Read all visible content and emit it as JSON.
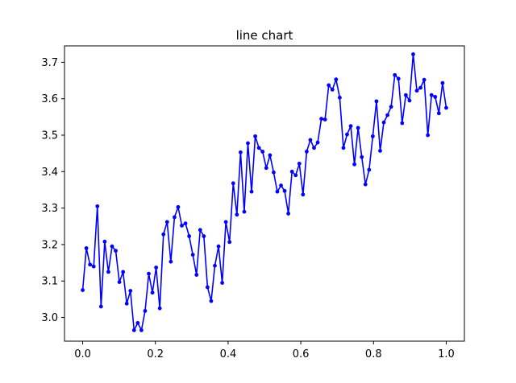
{
  "chart_data": {
    "type": "line",
    "title": "line chart",
    "xlabel": "",
    "ylabel": "",
    "xlim": [
      -0.05,
      1.05
    ],
    "ylim": [
      2.935,
      3.745
    ],
    "grid": false,
    "xticks": [
      "0.0",
      "0.2",
      "0.4",
      "0.6",
      "0.8",
      "1.0"
    ],
    "yticks": [
      "3.0",
      "3.1",
      "3.2",
      "3.3",
      "3.4",
      "3.5",
      "3.6",
      "3.7"
    ],
    "color": "#0000ff",
    "marker": "circle",
    "series": [
      {
        "x": [
          0.0,
          0.0101,
          0.0202,
          0.0303,
          0.0404,
          0.0505,
          0.0606,
          0.0707,
          0.0808,
          0.0909,
          0.101,
          0.1111,
          0.1212,
          0.1313,
          0.1414,
          0.1515,
          0.1616,
          0.1717,
          0.1818,
          0.1919,
          0.202,
          0.2121,
          0.2222,
          0.2323,
          0.2424,
          0.2525,
          0.2626,
          0.2727,
          0.2828,
          0.2929,
          0.303,
          0.3131,
          0.3232,
          0.3333,
          0.3434,
          0.3535,
          0.3636,
          0.3737,
          0.3838,
          0.3939,
          0.404,
          0.4141,
          0.4242,
          0.4343,
          0.4444,
          0.4545,
          0.4646,
          0.4747,
          0.4848,
          0.4949,
          0.5051,
          0.5152,
          0.5253,
          0.5354,
          0.5455,
          0.5556,
          0.5657,
          0.5758,
          0.5859,
          0.596,
          0.6061,
          0.6162,
          0.6263,
          0.6364,
          0.6465,
          0.6566,
          0.6667,
          0.6768,
          0.6869,
          0.697,
          0.7071,
          0.7172,
          0.7273,
          0.7374,
          0.7475,
          0.7576,
          0.7677,
          0.7778,
          0.7879,
          0.798,
          0.8081,
          0.8182,
          0.8283,
          0.8384,
          0.8485,
          0.8586,
          0.8687,
          0.8788,
          0.8889,
          0.899,
          0.9091,
          0.9192,
          0.9293,
          0.9394,
          0.9495,
          0.9596,
          0.9697,
          0.9798,
          0.9899,
          1.0
        ],
        "y": [
          3.075,
          3.19,
          3.145,
          3.14,
          3.305,
          3.03,
          3.208,
          3.125,
          3.195,
          3.183,
          3.097,
          3.125,
          3.038,
          3.073,
          2.965,
          2.985,
          2.965,
          3.018,
          3.12,
          3.068,
          3.137,
          3.025,
          3.228,
          3.262,
          3.153,
          3.275,
          3.303,
          3.252,
          3.258,
          3.223,
          3.172,
          3.117,
          3.24,
          3.223,
          3.083,
          3.045,
          3.142,
          3.195,
          3.095,
          3.262,
          3.207,
          3.368,
          3.282,
          3.453,
          3.29,
          3.478,
          3.345,
          3.497,
          3.465,
          3.455,
          3.41,
          3.445,
          3.398,
          3.345,
          3.362,
          3.347,
          3.285,
          3.4,
          3.39,
          3.422,
          3.337,
          3.455,
          3.487,
          3.465,
          3.48,
          3.545,
          3.543,
          3.637,
          3.625,
          3.653,
          3.603,
          3.465,
          3.502,
          3.525,
          3.42,
          3.52,
          3.44,
          3.365,
          3.405,
          3.497,
          3.593,
          3.457,
          3.535,
          3.555,
          3.578,
          3.665,
          3.655,
          3.533,
          3.61,
          3.595,
          3.722,
          3.622,
          3.63,
          3.652,
          3.5,
          3.61,
          3.605,
          3.56,
          3.643,
          3.575
        ]
      }
    ]
  }
}
